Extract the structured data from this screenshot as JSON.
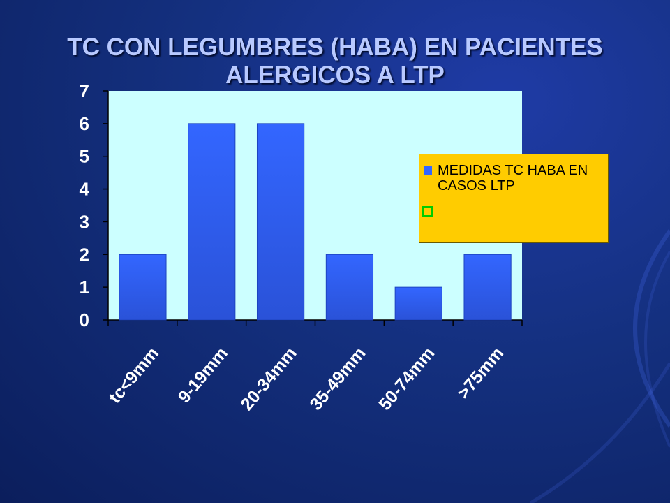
{
  "title_lines": [
    "TC  CON LEGUMBRES (HABA) EN PACIENTES",
    "ALERGICOS A LTP"
  ],
  "colors": {
    "plot_bg": "#ccffff",
    "bar": "#3366ff",
    "bar_dark": "#2a52d8",
    "axis": "#000000",
    "tick_label": "#ffffff",
    "legend_bg": "#ffcc00",
    "legend_second_swatch": "#00cc00"
  },
  "chart_data": {
    "type": "bar",
    "title": "TC  CON LEGUMBRES (HABA) EN PACIENTES ALERGICOS A LTP",
    "categories": [
      "tc<9mm",
      "9-19mm",
      "20-34mm",
      "35-49mm",
      "50-74mm",
      ">75mm"
    ],
    "series": [
      {
        "name": "MEDIDAS TC HABA EN CASOS LTP",
        "values": [
          2,
          6,
          6,
          2,
          1,
          2
        ]
      }
    ],
    "ylim": [
      0,
      7
    ],
    "yticks": [
      "0",
      "1",
      "2",
      "3",
      "4",
      "5",
      "6",
      "7"
    ],
    "xlabel": "",
    "ylabel": "",
    "grid": false,
    "legend_position": "right",
    "legend": [
      {
        "label": "MEDIDAS TC HABA EN CASOS LTP",
        "swatch": "filled-blue"
      },
      {
        "label": "",
        "swatch": "outline-green"
      }
    ]
  }
}
